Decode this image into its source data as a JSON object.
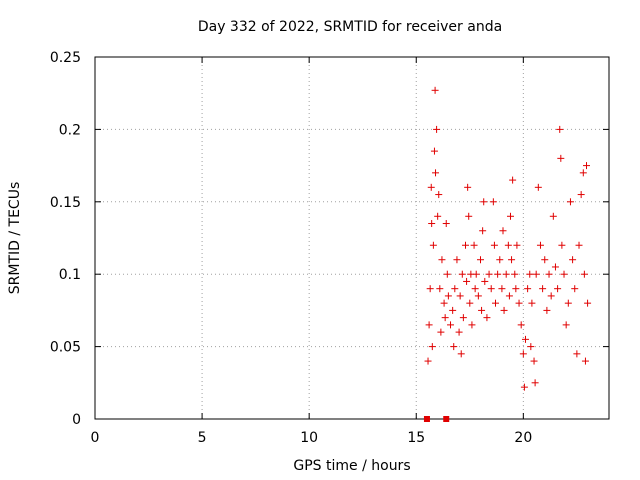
{
  "chart_data": {
    "type": "scatter",
    "title": "Day 332 of 2022, SRMTID for receiver anda",
    "xlabel": "GPS time / hours",
    "ylabel": "SRMTID / TECUs",
    "xlim": [
      0,
      24
    ],
    "ylim": [
      0,
      0.25
    ],
    "x_ticks": [
      "0",
      "5",
      "10",
      "15",
      "20"
    ],
    "x_tick_values": [
      0,
      5,
      10,
      15,
      20
    ],
    "y_ticks": [
      "0",
      "0.05",
      "0.1",
      "0.15",
      "0.2",
      "0.25"
    ],
    "y_tick_values": [
      0,
      0.05,
      0.1,
      0.15,
      0.2,
      0.25
    ],
    "grid": true,
    "series": [
      {
        "name": "SRMTID",
        "marker": "+",
        "color": "#e00000",
        "points": [
          [
            15.55,
            0.04
          ],
          [
            15.6,
            0.065
          ],
          [
            15.65,
            0.09
          ],
          [
            15.7,
            0.16
          ],
          [
            15.72,
            0.135
          ],
          [
            15.75,
            0.05
          ],
          [
            15.8,
            0.12
          ],
          [
            15.85,
            0.185
          ],
          [
            15.88,
            0.227
          ],
          [
            15.9,
            0.17
          ],
          [
            15.95,
            0.2
          ],
          [
            16.0,
            0.14
          ],
          [
            16.05,
            0.155
          ],
          [
            16.1,
            0.09
          ],
          [
            16.15,
            0.06
          ],
          [
            16.2,
            0.11
          ],
          [
            16.3,
            0.08
          ],
          [
            16.35,
            0.07
          ],
          [
            16.4,
            0.135
          ],
          [
            16.45,
            0.1
          ],
          [
            16.5,
            0.085
          ],
          [
            16.6,
            0.065
          ],
          [
            16.7,
            0.075
          ],
          [
            16.75,
            0.05
          ],
          [
            16.8,
            0.09
          ],
          [
            16.9,
            0.11
          ],
          [
            17.0,
            0.06
          ],
          [
            17.05,
            0.085
          ],
          [
            17.1,
            0.045
          ],
          [
            17.15,
            0.1
          ],
          [
            17.2,
            0.07
          ],
          [
            17.3,
            0.12
          ],
          [
            17.35,
            0.095
          ],
          [
            17.4,
            0.16
          ],
          [
            17.45,
            0.14
          ],
          [
            17.5,
            0.08
          ],
          [
            17.55,
            0.1
          ],
          [
            17.6,
            0.065
          ],
          [
            17.7,
            0.12
          ],
          [
            17.75,
            0.09
          ],
          [
            17.8,
            0.1
          ],
          [
            17.9,
            0.085
          ],
          [
            18.0,
            0.11
          ],
          [
            18.05,
            0.075
          ],
          [
            18.1,
            0.13
          ],
          [
            18.15,
            0.15
          ],
          [
            18.2,
            0.095
          ],
          [
            18.3,
            0.07
          ],
          [
            18.4,
            0.1
          ],
          [
            18.5,
            0.09
          ],
          [
            18.6,
            0.15
          ],
          [
            18.65,
            0.12
          ],
          [
            18.7,
            0.08
          ],
          [
            18.8,
            0.1
          ],
          [
            18.9,
            0.11
          ],
          [
            19.0,
            0.09
          ],
          [
            19.05,
            0.13
          ],
          [
            19.1,
            0.075
          ],
          [
            19.2,
            0.1
          ],
          [
            19.3,
            0.12
          ],
          [
            19.35,
            0.085
          ],
          [
            19.4,
            0.14
          ],
          [
            19.45,
            0.11
          ],
          [
            19.5,
            0.165
          ],
          [
            19.6,
            0.1
          ],
          [
            19.65,
            0.09
          ],
          [
            19.7,
            0.12
          ],
          [
            19.8,
            0.08
          ],
          [
            19.9,
            0.065
          ],
          [
            20.0,
            0.045
          ],
          [
            20.05,
            0.022
          ],
          [
            20.1,
            0.055
          ],
          [
            20.2,
            0.09
          ],
          [
            20.3,
            0.1
          ],
          [
            20.35,
            0.05
          ],
          [
            20.4,
            0.08
          ],
          [
            20.5,
            0.04
          ],
          [
            20.55,
            0.025
          ],
          [
            20.6,
            0.1
          ],
          [
            20.7,
            0.16
          ],
          [
            20.8,
            0.12
          ],
          [
            20.9,
            0.09
          ],
          [
            21.0,
            0.11
          ],
          [
            21.1,
            0.075
          ],
          [
            21.2,
            0.1
          ],
          [
            21.3,
            0.085
          ],
          [
            21.4,
            0.14
          ],
          [
            21.5,
            0.105
          ],
          [
            21.6,
            0.09
          ],
          [
            21.7,
            0.2
          ],
          [
            21.75,
            0.18
          ],
          [
            21.8,
            0.12
          ],
          [
            21.9,
            0.1
          ],
          [
            22.0,
            0.065
          ],
          [
            22.1,
            0.08
          ],
          [
            22.2,
            0.15
          ],
          [
            22.3,
            0.11
          ],
          [
            22.4,
            0.09
          ],
          [
            22.5,
            0.045
          ],
          [
            22.6,
            0.12
          ],
          [
            22.7,
            0.155
          ],
          [
            22.8,
            0.17
          ],
          [
            22.85,
            0.1
          ],
          [
            22.9,
            0.04
          ],
          [
            22.95,
            0.175
          ],
          [
            23.0,
            0.08
          ]
        ]
      }
    ],
    "data_gaps": [
      {
        "x": 15.5,
        "y": 0
      },
      {
        "x": 16.4,
        "y": 0
      }
    ]
  }
}
